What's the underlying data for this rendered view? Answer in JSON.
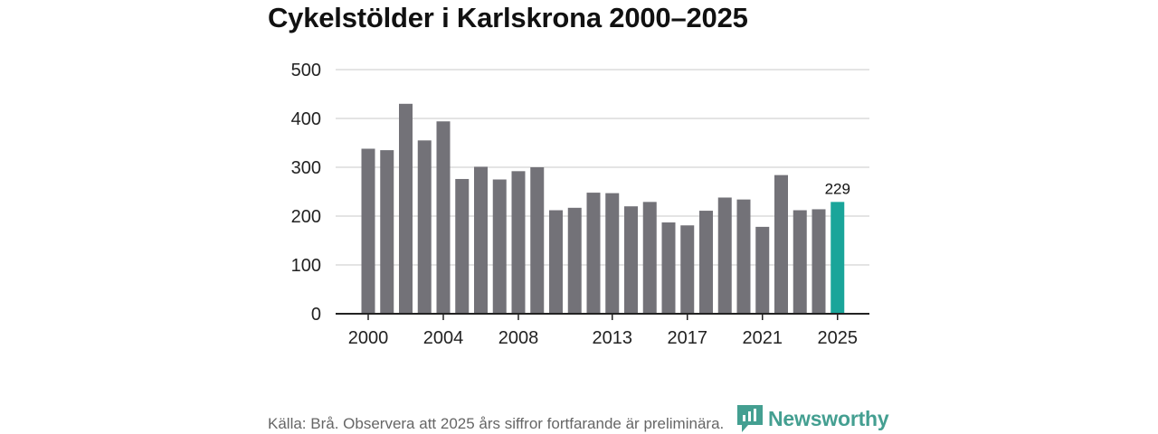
{
  "title": "Cykelstölder i Karlskrona 2000–2025",
  "source": "Källa: Brå. Observera att 2025 års siffror fortfarande är preliminära.",
  "brand": {
    "name": "Newsworthy",
    "icon": "newsworthy-logo-icon",
    "color": "#3a9a8c"
  },
  "chart_data": {
    "type": "bar",
    "categories": [
      2000,
      2001,
      2002,
      2003,
      2004,
      2005,
      2006,
      2007,
      2008,
      2009,
      2010,
      2011,
      2012,
      2013,
      2014,
      2015,
      2016,
      2017,
      2018,
      2019,
      2020,
      2021,
      2022,
      2023,
      2024,
      2025
    ],
    "values": [
      338,
      335,
      430,
      355,
      394,
      276,
      301,
      275,
      292,
      300,
      212,
      217,
      248,
      247,
      220,
      229,
      187,
      181,
      211,
      238,
      234,
      178,
      284,
      212,
      214,
      229
    ],
    "x_ticks": [
      2000,
      2004,
      2008,
      2013,
      2017,
      2021,
      2025
    ],
    "y_ticks": [
      0,
      100,
      200,
      300,
      400,
      500
    ],
    "ylim": [
      0,
      500
    ],
    "grid": true,
    "bar_color": "#737278",
    "highlight_color": "#1aa59a",
    "highlight_category": 2025,
    "annotations": [
      {
        "category": 2025,
        "label": "229"
      }
    ],
    "xlabel": "",
    "ylabel": ""
  }
}
